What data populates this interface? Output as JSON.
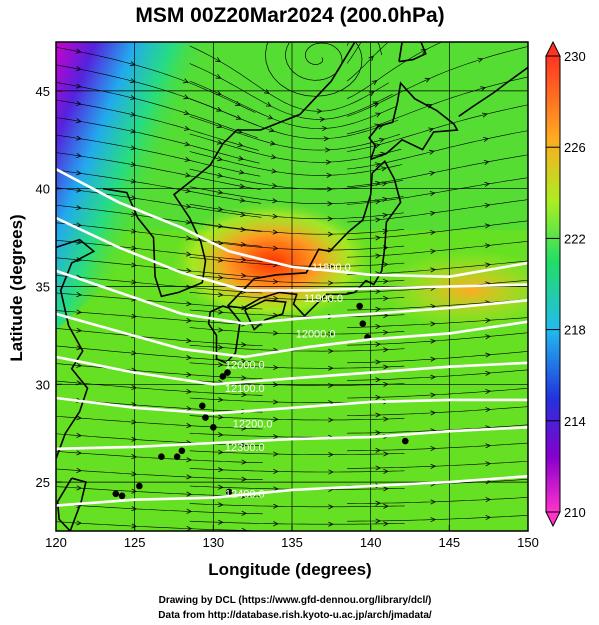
{
  "title": "MSM 00Z20Mar2024 (200.0hPa)",
  "x_axis": {
    "label": "Longitude (degrees)",
    "range": [
      120,
      150
    ],
    "ticks": [
      "120",
      "125",
      "130",
      "135",
      "140",
      "145",
      "150"
    ]
  },
  "y_axis": {
    "label": "Latitude  (degrees)",
    "range": [
      22.5,
      47.5
    ],
    "ticks": [
      "25",
      "30",
      "35",
      "40",
      "45"
    ]
  },
  "colorbar": {
    "range": [
      210,
      230
    ],
    "ticks": [
      "210",
      "214",
      "218",
      "222",
      "226",
      "230"
    ],
    "colors": [
      "#ff33cc",
      "#8800cc",
      "#2233dd",
      "#22bbee",
      "#22dd66",
      "#aaee22",
      "#ffaa22",
      "#ff3322"
    ]
  },
  "contour_labels": [
    {
      "text": "11800.0",
      "lon": 137.5,
      "lat": 35.8
    },
    {
      "text": "11900.0",
      "lon": 137.0,
      "lat": 34.2
    },
    {
      "text": "12000.0",
      "lon": 136.5,
      "lat": 32.4
    },
    {
      "text": "12000.0",
      "lon": 132.0,
      "lat": 30.8
    },
    {
      "text": "12100.0",
      "lon": 132.0,
      "lat": 29.6
    },
    {
      "text": "12200.0",
      "lon": 132.5,
      "lat": 27.8
    },
    {
      "text": "12300.0",
      "lon": 132.0,
      "lat": 26.6
    },
    {
      "text": "12400.0",
      "lon": 132.0,
      "lat": 24.2
    }
  ],
  "footer": {
    "line1": "Drawing by DCL (https://www.gfd-dennou.org/library/dcl/)",
    "line2": "Data from http://database.rish.kyoto-u.ac.jp/arch/jmadata/"
  },
  "colors": {
    "coast": "#000000",
    "contour": "#ffffff",
    "vector": "#000000",
    "grid": "#000000"
  }
}
